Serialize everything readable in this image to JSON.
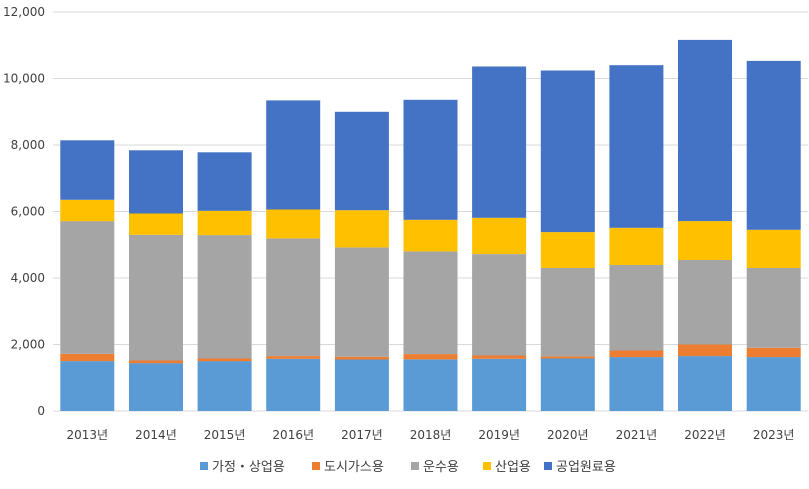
{
  "chart_data": {
    "type": "bar",
    "stacked": true,
    "title": "",
    "xlabel": "",
    "ylabel": "",
    "ylim": [
      0,
      12000
    ],
    "yticks": [
      "0",
      "2,000",
      "4,000",
      "6,000",
      "8,000",
      "10,000",
      "12,000"
    ],
    "ytick_values": [
      0,
      2000,
      4000,
      6000,
      8000,
      10000,
      12000
    ],
    "grid": true,
    "legend_position": "bottom",
    "categories": [
      "2013년",
      "2014년",
      "2015년",
      "2016년",
      "2017년",
      "2018년",
      "2019년",
      "2020년",
      "2021년",
      "2022년",
      "2023년"
    ],
    "series": [
      {
        "name": "가정・상업용",
        "color": "#5b9bd5",
        "values": [
          1500,
          1440,
          1500,
          1570,
          1550,
          1550,
          1570,
          1580,
          1620,
          1650,
          1620
        ]
      },
      {
        "name": "도시가스용",
        "color": "#ed7d31",
        "values": [
          220,
          80,
          80,
          80,
          80,
          160,
          100,
          60,
          200,
          350,
          280
        ]
      },
      {
        "name": "운수용",
        "color": "#a5a5a5",
        "values": [
          3990,
          3780,
          3710,
          3540,
          3290,
          3090,
          3050,
          2660,
          2570,
          2540,
          2400
        ]
      },
      {
        "name": "산업용",
        "color": "#ffc000",
        "values": [
          640,
          640,
          730,
          870,
          1120,
          950,
          1090,
          1080,
          1120,
          1170,
          1150
        ]
      },
      {
        "name": "공업원료용",
        "color": "#4472c4",
        "values": [
          1790,
          1900,
          1760,
          3280,
          2960,
          3610,
          4550,
          4860,
          4890,
          5450,
          5080
        ]
      }
    ]
  }
}
